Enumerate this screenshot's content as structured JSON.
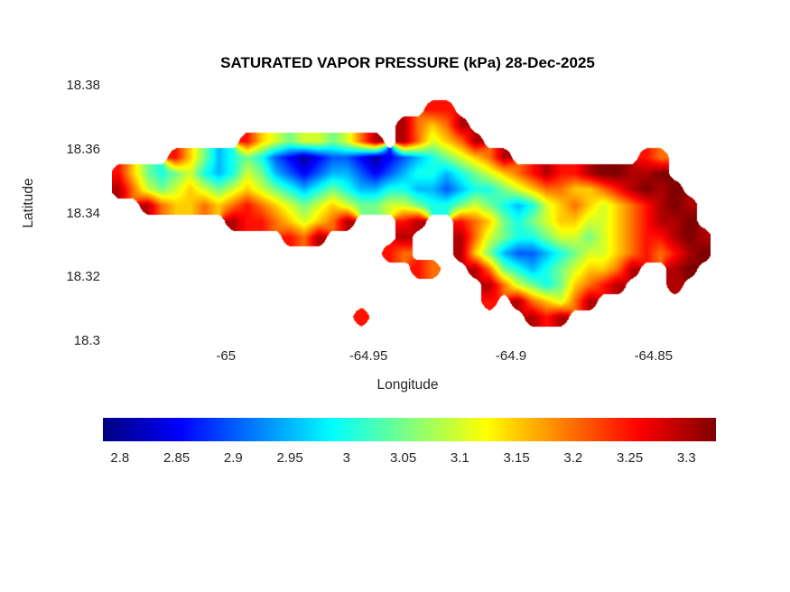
{
  "chart_data": {
    "type": "heatmap",
    "title": "SATURATED VAPOR PRESSURE (kPa) 28-Dec-2025",
    "xlabel": "Longitude",
    "ylabel": "Latitude",
    "units": "kPa",
    "x_range": [
      -65.04,
      -64.83
    ],
    "y_range": [
      18.3,
      18.38
    ],
    "xticks": {
      "values": [
        -65,
        -64.95,
        -64.9,
        -64.85
      ],
      "labels": [
        "-65",
        "-64.95",
        "-64.9",
        "-64.85"
      ]
    },
    "yticks": {
      "values": [
        18.3,
        18.32,
        18.34,
        18.36,
        18.38
      ],
      "labels": [
        "18.3",
        "18.32",
        "18.34",
        "18.36",
        "18.38"
      ]
    },
    "colormap": "jet",
    "color_range": [
      2.785,
      3.326
    ],
    "colorbar": {
      "orientation": "horizontal",
      "tick_values": [
        2.8,
        2.85,
        2.9,
        2.95,
        3,
        3.05,
        3.1,
        3.15,
        3.2,
        3.25,
        3.3
      ],
      "tick_labels": [
        "2.8",
        "2.85",
        "2.9",
        "2.95",
        "3",
        "3.05",
        "3.1",
        "3.15",
        "3.2",
        "3.25",
        "3.3"
      ]
    },
    "grid": {
      "comment": "Coarse raster of the island field; letters map to kPa values via value_key, '.' = water/no-data. Rows run north (18.38) to south (18.30), columns west (-65.04) to east (-64.83).",
      "ncols": 42,
      "nrows": 16,
      "value_key": {
        "a": 2.8,
        "b": 2.85,
        "c": 2.9,
        "d": 2.95,
        "e": 3.0,
        "f": 3.05,
        "g": 3.1,
        "h": 3.15,
        "i": 3.2,
        "j": 3.25,
        "k": 3.3,
        "l": 3.33,
        ".": null
      },
      "rows": [
        "..........................................",
        "......................jj..................",
        "....................kihik.................",
        ".........jhgfggfgik.kighik................",
        "....jhfdefecbabccbabcdefghik.........ji...",
        "jhfefgedegfdcbcddcbcdeedefghijkjjkllkkl...",
        "kigfghgfghgfedefeddeeddcdeefghiihhijklkl..",
        "..kihhihijihgfghgffggfeefgfedeghihghijklk.",
        "........kjjihghik...jk..jihfefghhgghijkkl.",
        "............jik.....k...kigfeefggfghijjklk",
        "...................ji...khfdccdefgghijijkl",
        ".....................ji..kifedefghhik..kl.",
        "..........................kigfefhijk...k..",
        "..........................j.kihgik........",
        ".................j...........kjk..........",
        ".........................................."
      ]
    }
  }
}
